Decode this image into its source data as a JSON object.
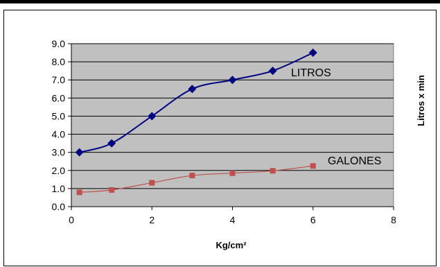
{
  "chart_data": {
    "type": "line",
    "title": "",
    "xlabel": "Kg/cm²",
    "ylabel": "Litros x min",
    "xlim": [
      0,
      8
    ],
    "ylim": [
      0,
      9
    ],
    "xticks": [
      0,
      2,
      4,
      6,
      8
    ],
    "yticks": [
      0.0,
      1.0,
      2.0,
      3.0,
      4.0,
      5.0,
      6.0,
      7.0,
      8.0,
      9.0
    ],
    "grid": "horizontal",
    "plot_background": "#C0C0C0",
    "series": [
      {
        "name": "LITROS",
        "color": "#000080",
        "marker": "diamond",
        "x": [
          0.2,
          1,
          2,
          3,
          4,
          5,
          6
        ],
        "y": [
          3.0,
          3.5,
          5.0,
          6.5,
          7.0,
          7.5,
          8.5
        ]
      },
      {
        "name": "GALONES",
        "color": "#C0504D",
        "marker": "square",
        "x": [
          0.2,
          1,
          2,
          3,
          4,
          5,
          6
        ],
        "y": [
          0.79,
          0.92,
          1.32,
          1.72,
          1.85,
          1.98,
          2.25
        ]
      }
    ]
  }
}
